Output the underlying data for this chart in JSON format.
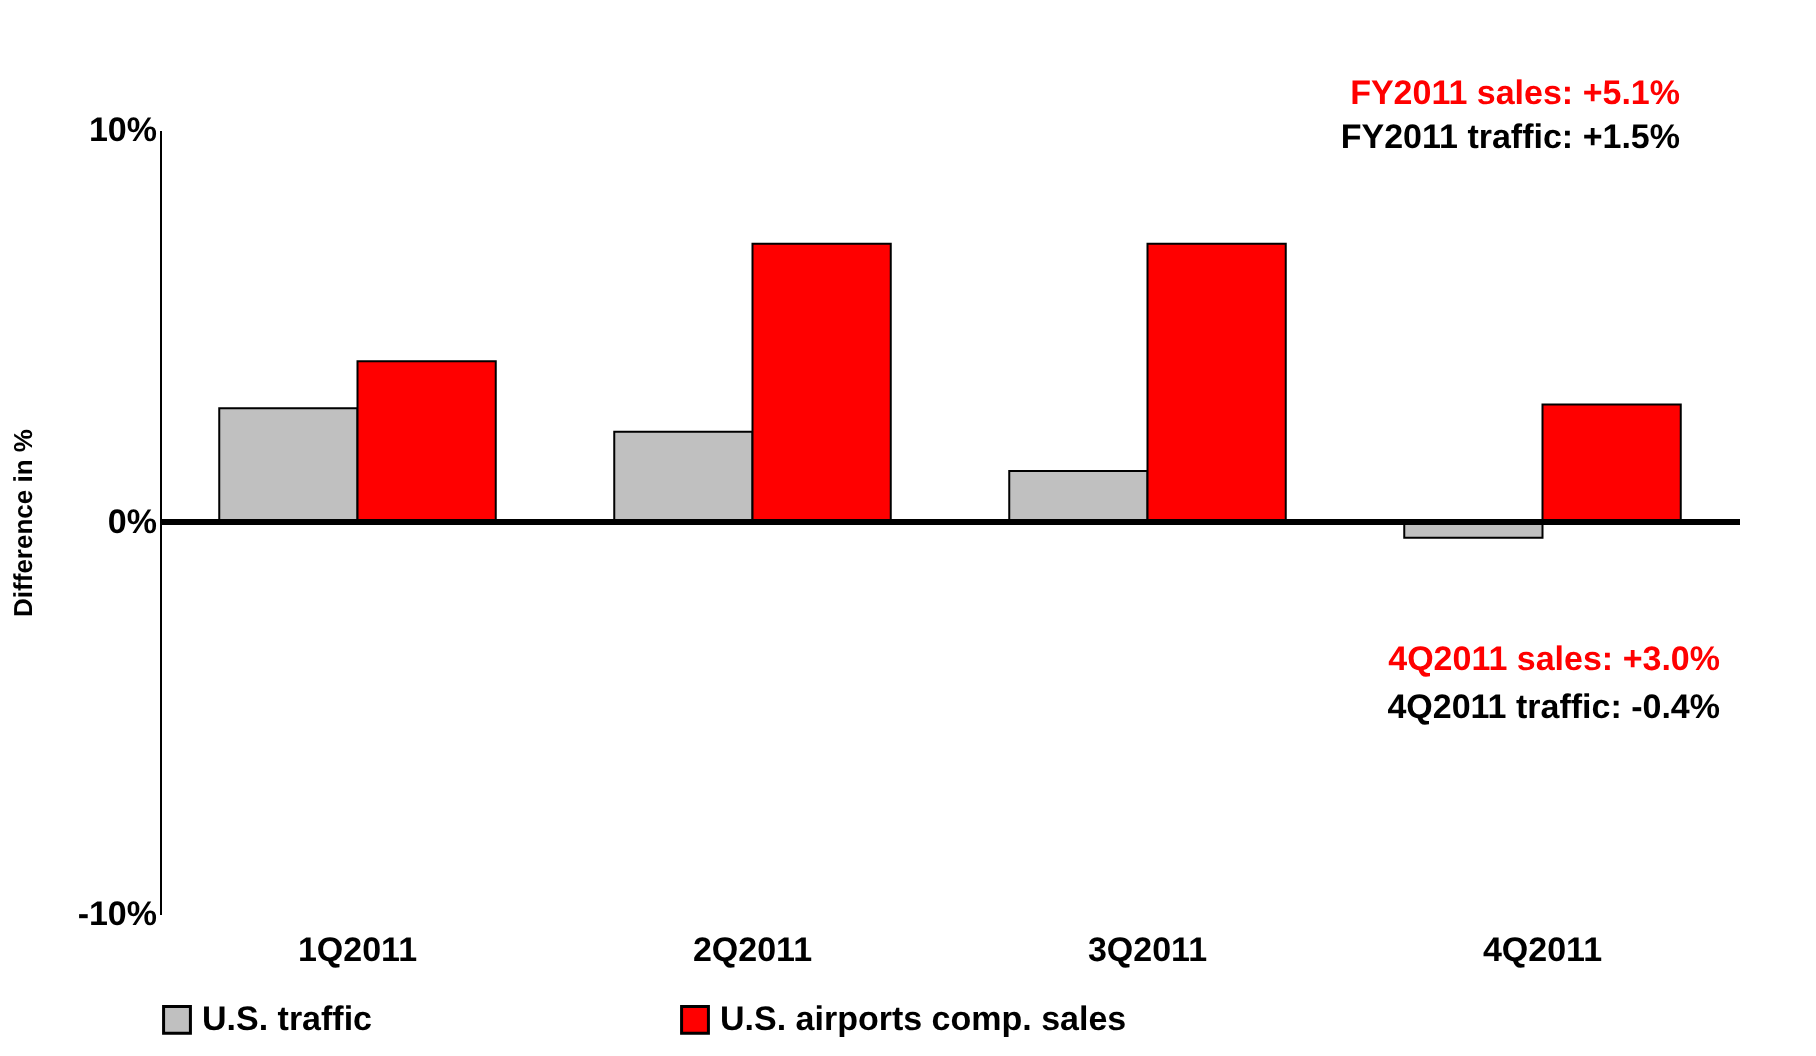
{
  "chart_data": {
    "type": "bar",
    "ylabel": "Difference in %",
    "categories": [
      "1Q2011",
      "2Q2011",
      "3Q2011",
      "4Q2011"
    ],
    "series": [
      {
        "name": "U.S. traffic",
        "color": "#c0c0c0",
        "values": [
          2.9,
          2.3,
          1.3,
          -0.4
        ]
      },
      {
        "name": "U.S. airports comp. sales",
        "color": "#ff0000",
        "values": [
          4.1,
          7.1,
          7.1,
          3.0
        ]
      }
    ],
    "ylim": [
      -10,
      10
    ],
    "yticks": [
      {
        "value": -10,
        "label": "-10%"
      },
      {
        "value": 0,
        "label": "0%"
      },
      {
        "value": 10,
        "label": "10%"
      }
    ],
    "ref_lines": [
      {
        "axis": "y",
        "value": 0,
        "color": "#000000"
      }
    ],
    "grid": false,
    "legend": "bottom",
    "annotations": [
      "FY2011 sales: +5.1%",
      "FY2011 traffic: +1.5%",
      "4Q2011 sales: +3.0%",
      "4Q2011 traffic: -0.4%"
    ]
  }
}
